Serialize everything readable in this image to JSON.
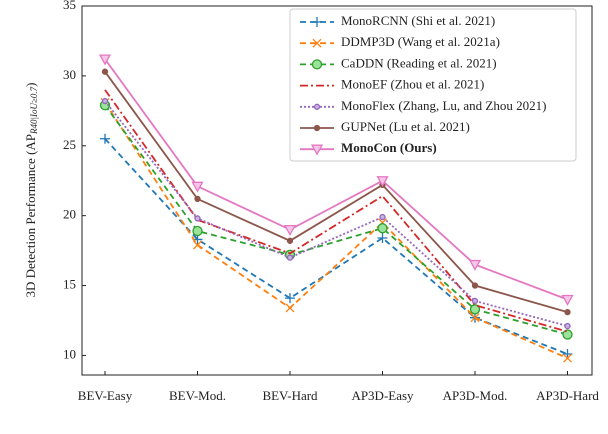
{
  "chart_data": {
    "type": "line",
    "ylabel": "3D Detection Performance (AP",
    "ylabel_sub": "R40|IoU≥0.7",
    "ylabel_end": ")",
    "categories": [
      "BEV-Easy",
      "BEV-Mod.",
      "BEV-Hard",
      "AP3D-Easy",
      "AP3D-Mod.",
      "AP3D-Hard"
    ],
    "ylim": [
      8.6,
      35
    ],
    "yticks": [
      10,
      15,
      20,
      25,
      30,
      35
    ],
    "grid": false,
    "legend": "upper-right",
    "series": [
      {
        "name": "MonoRCNN (Shi et al. 2021)",
        "color": "#1f77b4",
        "dash": "6,4",
        "marker": "plus",
        "values": [
          25.5,
          18.3,
          14.1,
          18.4,
          12.7,
          10.1
        ]
      },
      {
        "name": "DDMP3D (Wang et al. 2021a)",
        "color": "#ff7f0e",
        "dash": "6,4",
        "marker": "x",
        "values": [
          28.1,
          17.9,
          13.4,
          19.5,
          12.7,
          9.8
        ]
      },
      {
        "name": "CaDDN (Reading et al. 2021)",
        "color": "#2ca02c",
        "dash": "6,4",
        "marker": "circle-dot",
        "values": [
          27.9,
          18.9,
          17.2,
          19.1,
          13.3,
          11.5
        ]
      },
      {
        "name": "MonoEF (Zhou et al. 2021)",
        "color": "#d62728",
        "dash": "8,3,2,3",
        "marker": "none",
        "values": [
          29.0,
          19.7,
          17.3,
          21.4,
          13.6,
          11.7
        ]
      },
      {
        "name": "MonoFlex (Zhang, Lu, and Zhou 2021)",
        "color": "#9467bd",
        "dash": "2,2",
        "marker": "dot",
        "values": [
          28.2,
          19.8,
          17.0,
          19.9,
          13.9,
          12.1
        ]
      },
      {
        "name": "GUPNet (Lu et al. 2021)",
        "color": "#8c564b",
        "dash": "none",
        "marker": "circle",
        "values": [
          30.3,
          21.2,
          18.2,
          22.2,
          15.0,
          13.1
        ]
      },
      {
        "name": "MonoCon (Ours)",
        "color": "#e377c2",
        "dash": "none",
        "marker": "triangle-down",
        "bold": true,
        "values": [
          31.2,
          22.1,
          19.0,
          22.5,
          16.5,
          14.0
        ]
      }
    ]
  }
}
